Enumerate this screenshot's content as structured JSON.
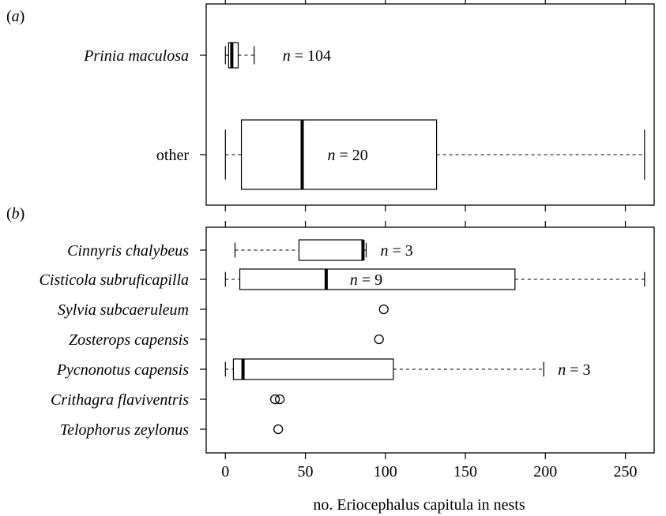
{
  "chart_data": [
    {
      "panel_label": {
        "pre": "(",
        "letter": "a",
        "post": ")"
      },
      "type": "boxplot",
      "orientation": "horizontal",
      "xlim": [
        -12,
        268
      ],
      "tick_labels_visible": false,
      "groups": [
        {
          "label": "Prinia maculosa",
          "italic": true,
          "min": 0,
          "q1": 2,
          "median": 4,
          "q3": 8,
          "max": 18,
          "outliers": [],
          "n_label": {
            "var": "n",
            "text": " = 104"
          }
        },
        {
          "label": "other",
          "italic": false,
          "min": 0,
          "q1": 10,
          "median": 48,
          "q3": 132,
          "max": 262,
          "outliers": [],
          "n_label": {
            "var": "n",
            "text": " = 20"
          }
        }
      ]
    },
    {
      "panel_label": {
        "pre": "(",
        "letter": "b",
        "post": ")"
      },
      "type": "boxplot",
      "orientation": "horizontal",
      "xlim": [
        -12,
        268
      ],
      "x_ticks": [
        0,
        50,
        100,
        150,
        200,
        250
      ],
      "x_tick_labels": [
        "0",
        "50",
        "100",
        "150",
        "200",
        "250"
      ],
      "xlabel": {
        "pre": "no. ",
        "italic": "Eriocephalus",
        "post": " capitula in nests"
      },
      "groups": [
        {
          "label": "Cinnyris chalybeus",
          "italic": true,
          "min": 6,
          "q1": 46,
          "median": 86,
          "q3": 86,
          "max": 88,
          "outliers": [],
          "n_label": {
            "var": "n",
            "text": " = 3"
          }
        },
        {
          "label": "Cisticola subruficapilla",
          "italic": true,
          "min": 0,
          "q1": 9,
          "median": 63,
          "q3": 181,
          "max": 262,
          "outliers": [],
          "n_label": {
            "var": "n",
            "text": " = 9"
          }
        },
        {
          "label": "Sylvia subcaeruleum",
          "italic": true,
          "points": [
            99
          ]
        },
        {
          "label": "Zosterops capensis",
          "italic": true,
          "points": [
            96
          ]
        },
        {
          "label": "Pycnonotus capensis",
          "italic": true,
          "min": 0,
          "q1": 5,
          "median": 11,
          "q3": 105,
          "max": 199,
          "outliers": [],
          "n_label": {
            "var": "n",
            "text": " = 3"
          }
        },
        {
          "label": "Crithagra flaviventris",
          "italic": true,
          "points": [
            31,
            34
          ]
        },
        {
          "label": "Telophorus zeylonus",
          "italic": true,
          "points": [
            33
          ]
        }
      ]
    }
  ]
}
